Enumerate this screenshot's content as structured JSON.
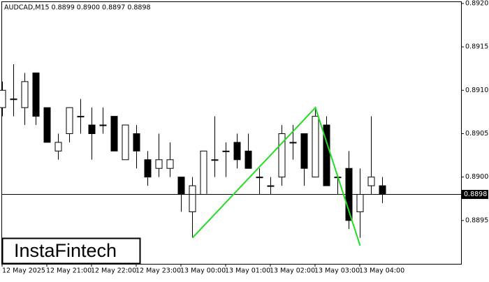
{
  "chart_data": {
    "type": "candlestick",
    "title": "AUDCAD,M15  0.8899 0.8900 0.8897 0.8898",
    "logo": "InstaFintech",
    "categories": [
      "12 May 2025",
      null,
      null,
      null,
      "12 May 21:00",
      null,
      null,
      null,
      "12 May 22:00",
      null,
      null,
      null,
      "12 May 23:00",
      null,
      null,
      null,
      "13 May 00:00",
      null,
      null,
      null,
      "13 May 01:00",
      null,
      null,
      null,
      "13 May 02:00",
      null,
      null,
      null,
      "13 May 03:00",
      null,
      null,
      null,
      "13 May 04:00",
      null,
      null
    ],
    "open": [
      0.8908,
      0.8909,
      0.8908,
      0.8912,
      0.8908,
      0.8903,
      0.8905,
      0.8907,
      0.8906,
      0.8906,
      0.8907,
      0.8902,
      0.8905,
      0.8902,
      0.8901,
      0.8901,
      0.89,
      0.8896,
      0.8898,
      0.8902,
      0.8903,
      0.8904,
      0.8903,
      0.89,
      0.8899,
      0.89,
      0.8904,
      0.8905,
      0.89,
      0.8906,
      0.89,
      0.8901,
      0.8896,
      0.8899,
      0.8899
    ],
    "high": [
      0.8911,
      0.8913,
      0.8912,
      0.8912,
      0.8908,
      0.8905,
      0.8908,
      0.8909,
      0.8908,
      0.8908,
      0.8907,
      0.8906,
      0.8906,
      0.8903,
      0.8905,
      0.8904,
      0.89,
      0.89,
      0.8903,
      0.8907,
      0.8904,
      0.8905,
      0.8905,
      0.8901,
      0.89,
      0.8906,
      0.8906,
      0.8905,
      0.8908,
      0.8907,
      0.89,
      0.8903,
      0.8901,
      0.8907,
      0.89
    ],
    "low": [
      0.8907,
      0.8907,
      0.8906,
      0.8906,
      0.8904,
      0.8902,
      0.8904,
      0.8905,
      0.8902,
      0.8905,
      0.8903,
      0.8902,
      0.8901,
      0.8899,
      0.89,
      0.89,
      0.8896,
      0.8893,
      0.8898,
      0.89,
      0.89,
      0.8901,
      0.8901,
      0.8898,
      0.8898,
      0.8899,
      0.8902,
      0.8899,
      0.89,
      0.8899,
      0.8898,
      0.8894,
      0.8893,
      0.8898,
      0.8897
    ],
    "close": [
      0.891,
      0.8909,
      0.8911,
      0.8907,
      0.8904,
      0.8904,
      0.8908,
      0.8907,
      0.8905,
      0.8906,
      0.8903,
      0.8906,
      0.8903,
      0.89,
      0.8902,
      0.8902,
      0.8898,
      0.8899,
      0.8903,
      0.8902,
      0.8903,
      0.8902,
      0.8901,
      0.89,
      0.8899,
      0.8905,
      0.8904,
      0.8901,
      0.8907,
      0.8899,
      0.89,
      0.8895,
      0.8898,
      0.89,
      0.8898
    ],
    "ylim": [
      0.889,
      0.89204
    ],
    "yticks": [
      0.8895,
      {
        "value": 0.89,
        "label": "0.8900"
      },
      0.8905,
      {
        "value": 0.891,
        "label": "0.8910"
      },
      0.8915,
      {
        "value": 0.892,
        "label": "0.8920"
      }
    ],
    "price_line": {
      "value": 0.8898,
      "label": "0.8898"
    },
    "pattern": {
      "color": "#22dd22",
      "index": [
        17,
        28,
        32
      ],
      "values": [
        0.8893,
        0.8908,
        0.88921
      ]
    },
    "up_color": "#ffffff",
    "down_color": "#000000"
  }
}
